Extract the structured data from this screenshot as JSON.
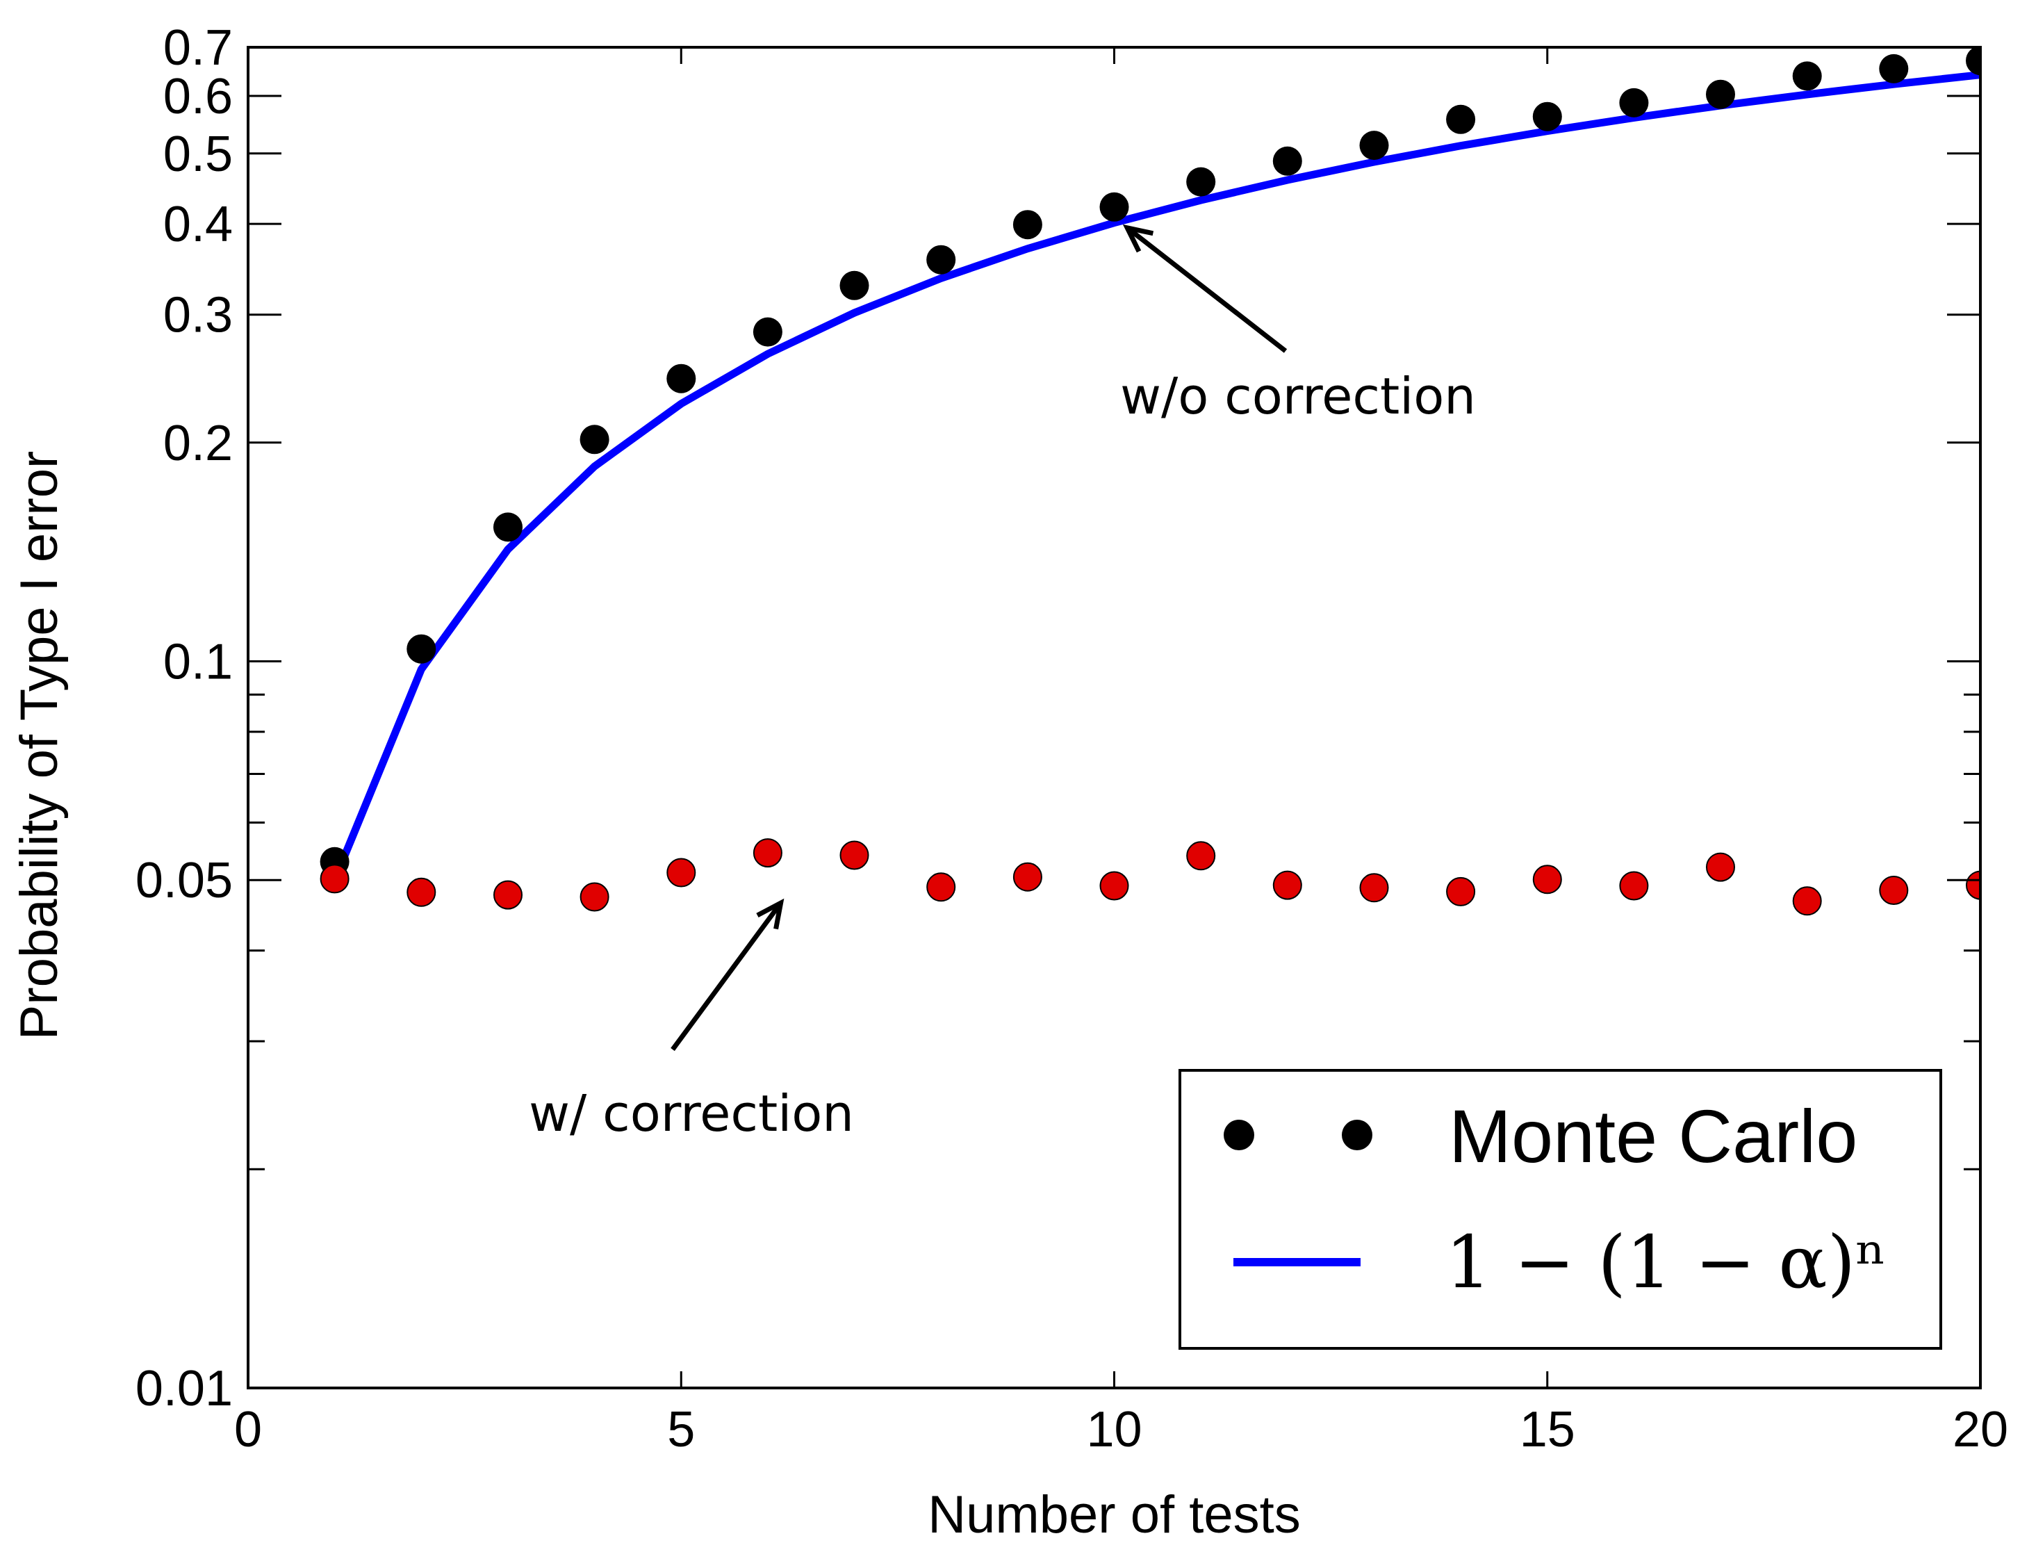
{
  "chart_data": {
    "type": "scatter",
    "xlabel": "Number of tests",
    "ylabel": "Probability of Type I error",
    "xlim": [
      0,
      20
    ],
    "ylim": [
      0.01,
      0.7
    ],
    "yscale": "log",
    "grid": false,
    "x_ticks": [
      0,
      5,
      10,
      15,
      20
    ],
    "x_tick_labels": [
      "0",
      "5",
      "10",
      "15",
      "20"
    ],
    "y_ticks": [
      0.01,
      0.05,
      0.1,
      0.2,
      0.3,
      0.4,
      0.5,
      0.6,
      0.7
    ],
    "y_tick_labels": [
      "0.01",
      "0.05",
      "0.1",
      "0.2",
      "0.3",
      "0.4",
      "0.5",
      "0.6",
      "0.7"
    ],
    "y_minor_ticks": [
      0.02,
      0.03,
      0.04,
      0.06,
      0.07,
      0.08,
      0.09
    ],
    "series": [
      {
        "name": "Monte Carlo",
        "kind": "scatter",
        "color": "#000000",
        "x": [
          1,
          2,
          3,
          4,
          5,
          6,
          7,
          8,
          9,
          10,
          11,
          12,
          13,
          14,
          15,
          16,
          17,
          18,
          19,
          20
        ],
        "y": [
          0.053,
          0.104,
          0.153,
          0.202,
          0.245,
          0.284,
          0.329,
          0.357,
          0.399,
          0.422,
          0.457,
          0.488,
          0.513,
          0.557,
          0.562,
          0.587,
          0.603,
          0.639,
          0.654,
          0.671
        ]
      },
      {
        "name": "w/ correction",
        "kind": "scatter",
        "color": "#e00000",
        "x": [
          1,
          2,
          3,
          4,
          5,
          6,
          7,
          8,
          9,
          10,
          11,
          12,
          13,
          14,
          15,
          16,
          17,
          18,
          19,
          20
        ],
        "y": [
          0.0502,
          0.0481,
          0.0477,
          0.0474,
          0.0512,
          0.0545,
          0.0541,
          0.0489,
          0.0505,
          0.0491,
          0.054,
          0.0492,
          0.0488,
          0.0482,
          0.0501,
          0.0491,
          0.0521,
          0.0468,
          0.0484,
          0.0492
        ]
      },
      {
        "name": "1 − (1 − α)ⁿ",
        "kind": "line",
        "color": "#0000ff",
        "alpha": 0.05,
        "x": [
          1,
          2,
          3,
          4,
          5,
          6,
          7,
          8,
          9,
          10,
          11,
          12,
          13,
          14,
          15,
          16,
          17,
          18,
          19,
          20
        ],
        "y": [
          0.05,
          0.0975,
          0.1426,
          0.1855,
          0.2262,
          0.2649,
          0.3017,
          0.3366,
          0.3698,
          0.4013,
          0.4312,
          0.4596,
          0.4867,
          0.5123,
          0.5367,
          0.5599,
          0.5819,
          0.6028,
          0.6226,
          0.6415
        ]
      }
    ],
    "annotations": [
      {
        "text": "w/o correction",
        "point": [
          10.15,
          0.395
        ]
      },
      {
        "text": "w/ correction",
        "point": [
          6.15,
          0.0465
        ]
      }
    ],
    "legend": {
      "placement": "lower-right",
      "entries": [
        {
          "label": "Monte Carlo",
          "marker": "dots"
        },
        {
          "label": "1 − (1 − α)ⁿ",
          "marker": "line"
        }
      ]
    }
  }
}
